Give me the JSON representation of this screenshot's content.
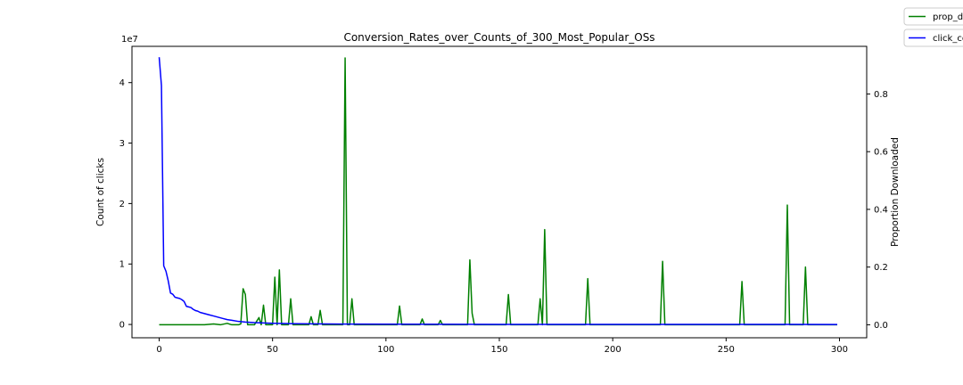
{
  "chart_data": {
    "type": "line",
    "title": "Conversion_Rates_over_Counts_of_300_Most_Popular_OSs",
    "xlabel": "",
    "xlim": [
      -12,
      312
    ],
    "xticks": [
      0,
      50,
      100,
      150,
      200,
      250,
      300
    ],
    "left_axis": {
      "ylabel": "Count of clicks",
      "scale_label": "1e7",
      "ylim": [
        -0.22,
        4.6
      ],
      "yticks": [
        0,
        1,
        2,
        3,
        4
      ]
    },
    "right_axis": {
      "ylabel": "Proportion Downloaded",
      "ylim": [
        -0.045,
        0.965
      ],
      "yticks": [
        0.0,
        0.2,
        0.4,
        0.6,
        0.8
      ],
      "ytick_labels": [
        "0.0",
        "0.2",
        "0.4",
        "0.6",
        "0.8"
      ]
    },
    "grid": false,
    "legend": {
      "placement": "top-right, outside plot",
      "entries": [
        "prop_d",
        "click_co"
      ]
    },
    "series": [
      {
        "name": "prop_d",
        "axis": "right",
        "color": "#008000",
        "points": [
          [
            0,
            0.0
          ],
          [
            12,
            0.0
          ],
          [
            20,
            0.0
          ],
          [
            24,
            0.003
          ],
          [
            27,
            0.0
          ],
          [
            30,
            0.005
          ],
          [
            32,
            0.0
          ],
          [
            35,
            0.0
          ],
          [
            36,
            0.003
          ],
          [
            37,
            0.125
          ],
          [
            38,
            0.105
          ],
          [
            39,
            0.0
          ],
          [
            42,
            0.0
          ],
          [
            44,
            0.025
          ],
          [
            45,
            0.0
          ],
          [
            46,
            0.068
          ],
          [
            47,
            0.0
          ],
          [
            50,
            0.0
          ],
          [
            51,
            0.165
          ],
          [
            52,
            0.0
          ],
          [
            53,
            0.19
          ],
          [
            54,
            0.0
          ],
          [
            57,
            0.0
          ],
          [
            58,
            0.09
          ],
          [
            59,
            0.0
          ],
          [
            66,
            0.0
          ],
          [
            67,
            0.028
          ],
          [
            68,
            0.0
          ],
          [
            70,
            0.0
          ],
          [
            71,
            0.05
          ],
          [
            72,
            0.0
          ],
          [
            81,
            0.0
          ],
          [
            82,
            0.925
          ],
          [
            83,
            0.0
          ],
          [
            84,
            0.0
          ],
          [
            85,
            0.09
          ],
          [
            86,
            0.0
          ],
          [
            105,
            0.0
          ],
          [
            106,
            0.065
          ],
          [
            107,
            0.0
          ],
          [
            115,
            0.0
          ],
          [
            116,
            0.02
          ],
          [
            117,
            0.0
          ],
          [
            123,
            0.0
          ],
          [
            124,
            0.015
          ],
          [
            125,
            0.0
          ],
          [
            136,
            0.0
          ],
          [
            137,
            0.225
          ],
          [
            138,
            0.04
          ],
          [
            139,
            0.0
          ],
          [
            153,
            0.0
          ],
          [
            154,
            0.105
          ],
          [
            155,
            0.0
          ],
          [
            167,
            0.0
          ],
          [
            168,
            0.09
          ],
          [
            169,
            0.0
          ],
          [
            170,
            0.33
          ],
          [
            171,
            0.0
          ],
          [
            188,
            0.0
          ],
          [
            189,
            0.16
          ],
          [
            190,
            0.0
          ],
          [
            221,
            0.0
          ],
          [
            222,
            0.22
          ],
          [
            223,
            0.0
          ],
          [
            256,
            0.0
          ],
          [
            257,
            0.15
          ],
          [
            258,
            0.0
          ],
          [
            276,
            0.0
          ],
          [
            277,
            0.415
          ],
          [
            278,
            0.0
          ],
          [
            284,
            0.0
          ],
          [
            285,
            0.2
          ],
          [
            286,
            0.0
          ],
          [
            299,
            0.0
          ]
        ]
      },
      {
        "name": "click_co",
        "axis": "left",
        "color": "#0000ff",
        "points": [
          [
            0,
            4.42
          ],
          [
            1,
            3.95
          ],
          [
            2,
            0.97
          ],
          [
            3,
            0.88
          ],
          [
            4,
            0.72
          ],
          [
            5,
            0.52
          ],
          [
            6,
            0.5
          ],
          [
            7,
            0.45
          ],
          [
            8,
            0.44
          ],
          [
            9,
            0.43
          ],
          [
            10,
            0.41
          ],
          [
            11,
            0.38
          ],
          [
            12,
            0.3
          ],
          [
            13,
            0.29
          ],
          [
            14,
            0.28
          ],
          [
            15,
            0.25
          ],
          [
            16,
            0.23
          ],
          [
            17,
            0.22
          ],
          [
            18,
            0.2
          ],
          [
            20,
            0.18
          ],
          [
            22,
            0.16
          ],
          [
            24,
            0.14
          ],
          [
            26,
            0.12
          ],
          [
            28,
            0.1
          ],
          [
            30,
            0.08
          ],
          [
            32,
            0.07
          ],
          [
            35,
            0.05
          ],
          [
            38,
            0.04
          ],
          [
            42,
            0.03
          ],
          [
            50,
            0.02
          ],
          [
            60,
            0.012
          ],
          [
            80,
            0.007
          ],
          [
            100,
            0.004
          ],
          [
            150,
            0.002
          ],
          [
            200,
            0.001
          ],
          [
            299,
            0.0
          ]
        ]
      }
    ]
  }
}
